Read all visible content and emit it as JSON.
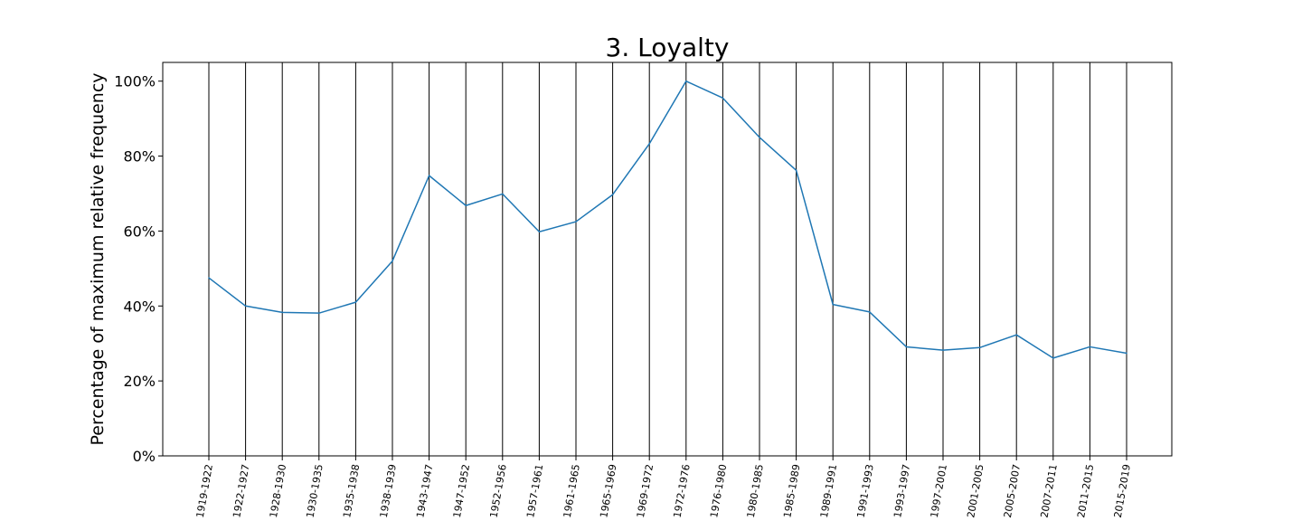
{
  "chart_data": {
    "type": "line",
    "title": "3. Loyalty",
    "xlabel": "",
    "ylabel": "Percentage of maximum relative frequency",
    "ylim": [
      0,
      105
    ],
    "yticks": [
      "0%",
      "20%",
      "40%",
      "60%",
      "80%",
      "100%"
    ],
    "ytick_values": [
      0,
      20,
      40,
      60,
      80,
      100
    ],
    "grid": "vertical lines at each category",
    "colors": {
      "line": "#1f77b4",
      "grid": "#000000",
      "axes": "#000000"
    },
    "categories": [
      "1919-1922",
      "1922-1927",
      "1928-1930",
      "1930-1935",
      "1935-1938",
      "1938-1939",
      "1943-1947",
      "1947-1952",
      "1952-1956",
      "1957-1961",
      "1961-1965",
      "1965-1969",
      "1969-1972",
      "1972-1976",
      "1976-1980",
      "1980-1985",
      "1985-1989",
      "1989-1991",
      "1991-1993",
      "1993-1997",
      "1997-2001",
      "2001-2005",
      "2005-2007",
      "2007-2011",
      "2011-2015",
      "2015-2019"
    ],
    "series": [
      {
        "values": [
          47.5,
          40.0,
          38.3,
          38.1,
          41.0,
          52.0,
          74.8,
          66.8,
          69.9,
          59.8,
          62.5,
          69.7,
          83.3,
          100.0,
          95.5,
          85.0,
          76.2,
          40.4,
          38.4,
          29.1,
          28.2,
          28.9,
          32.3,
          26.1,
          29.1,
          27.4
        ]
      }
    ]
  }
}
